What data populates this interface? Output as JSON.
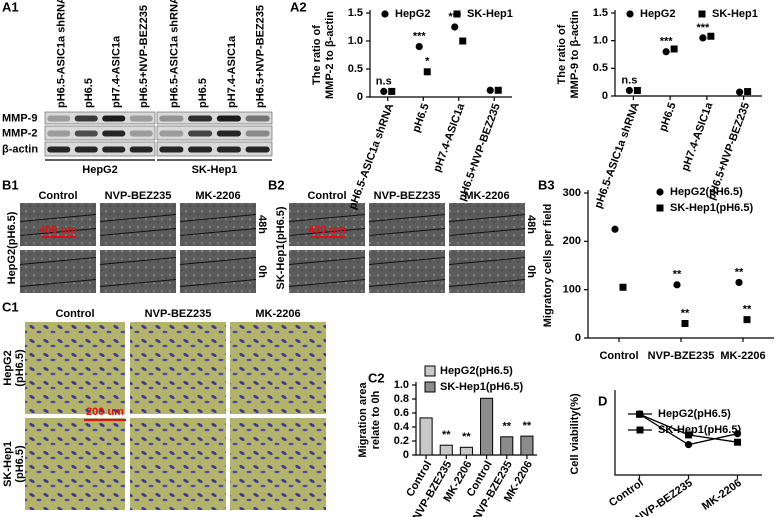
{
  "panel_labels": [
    "A1",
    "A2",
    "B1",
    "B2",
    "B3",
    "C1",
    "C2",
    "D"
  ],
  "blot": {
    "lanes": [
      "pH6.5-ASIC1a shRNA",
      "pH6.5",
      "pH7.4-ASIC1a",
      "pH6.5+NVP-BEZ235",
      "pH6.5-ASIC1a shRNA",
      "pH6.5",
      "pH7.4-ASIC1a",
      "pH6.5+NVP-BEZ235"
    ],
    "rows": [
      "MMP-9",
      "MMP-2",
      "β-actin"
    ],
    "groups": [
      "HepG2",
      "SK-Hep1"
    ]
  },
  "wound": {
    "columns": [
      "Control",
      "NVP-BEZ235",
      "MK-2206"
    ],
    "times": [
      "48h",
      "0h"
    ],
    "cells": [
      "HepG2(pH6.5)",
      "SK-Hep1(pH6.5)"
    ],
    "scale": "400 um"
  },
  "transwell": {
    "columns": [
      "Control",
      "NVP-BEZ235",
      "MK-2206"
    ],
    "rows": [
      [
        "HepG2",
        "(pH6.5)"
      ],
      [
        "SK-Hep1",
        "(pH6.5)"
      ]
    ],
    "scale": "200 um"
  },
  "chart_data": [
    {
      "type": "scatter",
      "ylabel": [
        "The ratio of",
        "MMP-2 to β-actin"
      ],
      "categories": [
        "pH6.5-ASIC1a shRNA",
        "pH6.5",
        "pH7.4-ASIC1a",
        "pH6.5+NVP-BEZ235"
      ],
      "series": [
        {
          "name": "HepG2",
          "color": "#000000",
          "marker": "circle",
          "values": [
            0.1,
            0.9,
            1.25,
            0.12
          ],
          "annotations": [
            "n.s",
            "***",
            "***",
            null
          ]
        },
        {
          "name": "SK-Hep1",
          "color": "#000000",
          "marker": "square",
          "values": [
            0.1,
            0.45,
            1.0,
            0.12
          ],
          "annotations": [
            null,
            "*",
            null,
            null
          ]
        }
      ],
      "ylim": [
        0,
        1.5
      ],
      "yticks": [
        0,
        0.5,
        {
          "value": 1,
          "label": "1.0"
        },
        1.5
      ],
      "legend": "top"
    },
    {
      "type": "scatter",
      "ylabel": [
        "The ratio of",
        "MMP-9 to β-actin"
      ],
      "categories": [
        "pH6.5-ASIC1a shRNA",
        "pH6.5",
        "pH7.4-ASIC1a",
        "pH6.5+NVP-BEZ235"
      ],
      "series": [
        {
          "name": "HepG2",
          "color": "#000000",
          "marker": "circle",
          "values": [
            0.1,
            0.8,
            1.05,
            0.07
          ],
          "annotations": [
            "n.s",
            "***",
            "***",
            null
          ]
        },
        {
          "name": "SK-Hep1",
          "color": "#000000",
          "marker": "square",
          "values": [
            0.1,
            0.85,
            1.08,
            0.08
          ],
          "annotations": [
            null,
            null,
            null,
            null
          ]
        }
      ],
      "ylim": [
        0,
        1.5
      ],
      "yticks": [
        0,
        0.5,
        {
          "value": 1,
          "label": "1.0"
        },
        1.5
      ],
      "legend": "top"
    },
    {
      "type": "scatter",
      "ylabel": [
        "Migratory cells per field"
      ],
      "categories": [
        "Control",
        "NVP-BZE235",
        "MK-2206"
      ],
      "series": [
        {
          "name": "HepG2(pH6.5)",
          "color": "#000000",
          "marker": "circle",
          "values": [
            225,
            110,
            115
          ],
          "annotations": [
            null,
            "**",
            "**"
          ]
        },
        {
          "name": "SK-Hep1(pH6.5)",
          "color": "#000000",
          "marker": "square",
          "values": [
            105,
            30,
            38
          ],
          "annotations": [
            null,
            "**",
            "**"
          ]
        }
      ],
      "ylim": [
        0,
        300
      ],
      "yticks": [
        0,
        100,
        200,
        300
      ],
      "legend": "upper right"
    },
    {
      "type": "bar",
      "ylabel": [
        "Migration area",
        "relate to 0h"
      ],
      "categories": [
        "Control",
        "NVP-BZE235",
        "MK-2206",
        "Control",
        "NVP-BZE235",
        "MK-2206"
      ],
      "series": [
        {
          "name": "HepG2(pH6.5)",
          "color": "#c8c8c8",
          "values": [
            0.53,
            0.14,
            0.11,
            null,
            null,
            null
          ],
          "annotations": [
            null,
            "**",
            "**",
            null,
            null,
            null
          ]
        },
        {
          "name": "SK-Hep1(pH6.5)",
          "color": "#8c8c8c",
          "values": [
            null,
            null,
            null,
            0.81,
            0.26,
            0.27
          ],
          "annotations": [
            null,
            null,
            null,
            null,
            "**",
            "**"
          ]
        }
      ],
      "ylim": [
        0,
        1
      ],
      "yticks": [
        0,
        0.2,
        0.4,
        0.6,
        0.8,
        {
          "value": 1,
          "label": "1.0"
        }
      ],
      "legend": "upper left"
    },
    {
      "type": "line",
      "ylabel": [
        "Cell viability(%)"
      ],
      "categories": [
        "Control",
        "NVP-BEZ235",
        "MK-2206"
      ],
      "series": [
        {
          "name": "HepG2(pH6.5)",
          "color": "#000000",
          "marker": "circle",
          "values": [
            100,
            50,
            68
          ]
        },
        {
          "name": "SK-Hep1(pH6.5)",
          "color": "#000000",
          "marker": "square",
          "values": [
            100,
            66,
            54
          ]
        }
      ],
      "ylim": [
        0,
        135
      ],
      "legend": "upper right"
    }
  ]
}
